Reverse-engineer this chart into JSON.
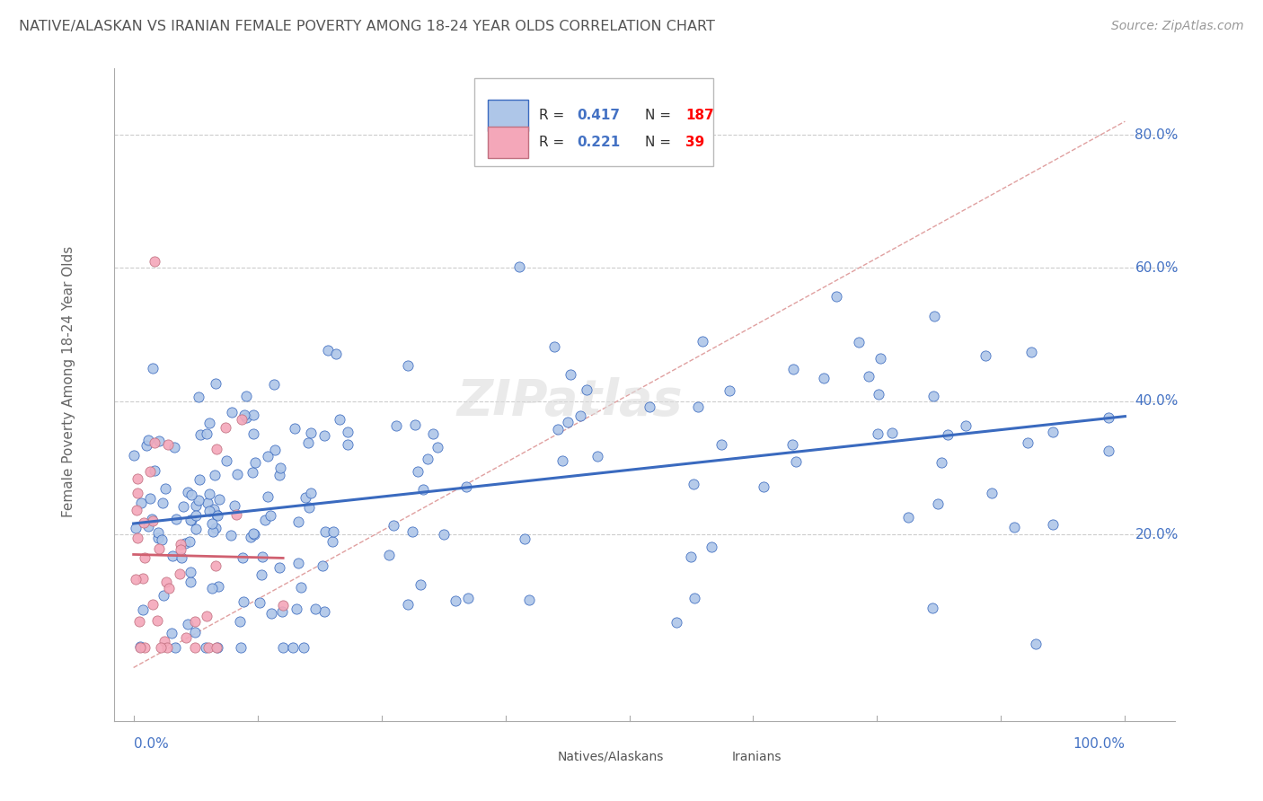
{
  "title": "NATIVE/ALASKAN VS IRANIAN FEMALE POVERTY AMONG 18-24 YEAR OLDS CORRELATION CHART",
  "source": "Source: ZipAtlas.com",
  "ylabel": "Female Poverty Among 18-24 Year Olds",
  "legend_bottom": [
    "Natives/Alaskans",
    "Iranians"
  ],
  "R_native": 0.417,
  "N_native": 187,
  "R_iranian": 0.221,
  "N_iranian": 39,
  "native_color": "#aec6e8",
  "iranian_color": "#f4a7b9",
  "native_line_color": "#3a6abf",
  "iranian_line_color": "#d06070",
  "background_color": "#ffffff",
  "grid_color": "#cccccc",
  "title_color": "#555555",
  "axis_label_color": "#4472c4",
  "ytick_vals": [
    0.2,
    0.4,
    0.6,
    0.8
  ],
  "ytick_labels": [
    "20.0%",
    "40.0%",
    "60.0%",
    "80.0%"
  ],
  "xlim": [
    -0.02,
    1.05
  ],
  "ylim": [
    -0.08,
    0.9
  ]
}
